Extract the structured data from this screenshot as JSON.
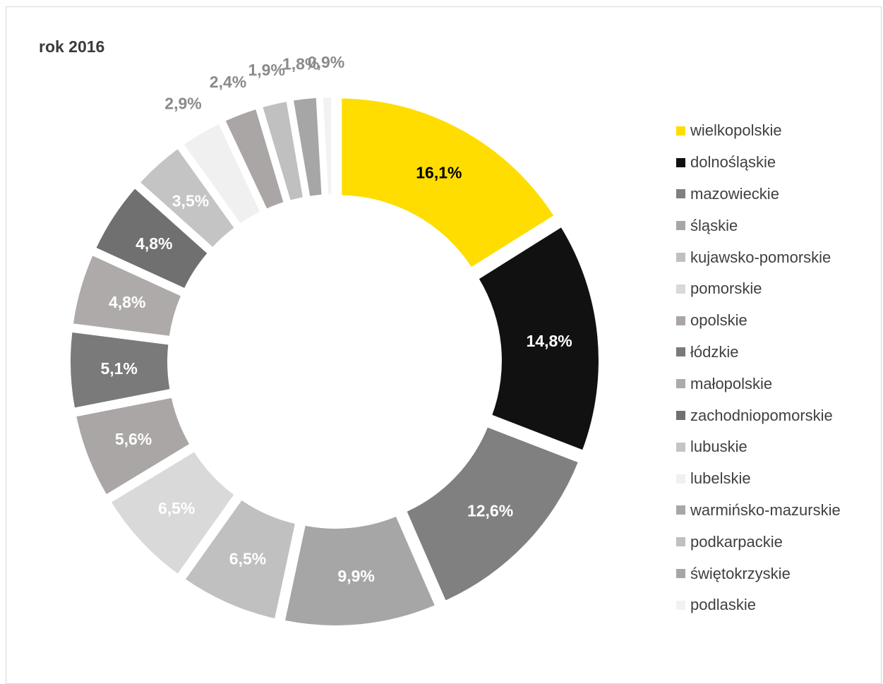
{
  "chart_data": {
    "type": "pie",
    "variant": "donut",
    "title": "rok 2016",
    "legend_position": "right",
    "slices": [
      {
        "name": "wielkopolskie",
        "value": 16.1,
        "label": "16,1%",
        "color": "#FFDD00",
        "label_color": "#000000"
      },
      {
        "name": "dolnośląskie",
        "value": 14.8,
        "label": "14,8%",
        "color": "#111111",
        "label_color": "#ffffff"
      },
      {
        "name": "mazowieckie",
        "value": 12.6,
        "label": "12,6%",
        "color": "#808080",
        "label_color": "#ffffff"
      },
      {
        "name": "śląskie",
        "value": 9.9,
        "label": "9,9%",
        "color": "#a6a6a6",
        "label_color": "#ffffff"
      },
      {
        "name": "kujawsko-pomorskie",
        "value": 6.5,
        "label": "6,5%",
        "color": "#c0c0c0",
        "label_color": "#ffffff"
      },
      {
        "name": "pomorskie",
        "value": 6.5,
        "label": "6,5%",
        "color": "#d9d9d9",
        "label_color": "#ffffff"
      },
      {
        "name": "opolskie",
        "value": 5.6,
        "label": "5,6%",
        "color": "#aba6a6",
        "label_color": "#ffffff"
      },
      {
        "name": "łódzkie",
        "value": 5.1,
        "label": "5,1%",
        "color": "#7a7a7a",
        "label_color": "#ffffff"
      },
      {
        "name": "małopolskie",
        "value": 4.8,
        "label": "4,8%",
        "color": "#aeaaaa",
        "label_color": "#ffffff"
      },
      {
        "name": "zachodniopomorskie",
        "value": 4.8,
        "label": "4,8%",
        "color": "#707070",
        "label_color": "#ffffff"
      },
      {
        "name": "lubuskie",
        "value": 3.5,
        "label": "3,5%",
        "color": "#c4c4c4",
        "label_color": "#ffffff"
      },
      {
        "name": "lubelskie",
        "value": 2.9,
        "label": "2,9%",
        "color": "#f0f0f0",
        "label_color": "#8a8a8a"
      },
      {
        "name": "warmińsko-mazurskie",
        "value": 2.4,
        "label": "2,4%",
        "color": "#aba6a6",
        "label_color": "#8a8a8a"
      },
      {
        "name": "podkarpackie",
        "value": 1.9,
        "label": "1,9%",
        "color": "#c0c0c0",
        "label_color": "#8a8a8a"
      },
      {
        "name": "świętokrzyskie",
        "value": 1.8,
        "label": "1,8%",
        "color": "#a6a6a6",
        "label_color": "#8a8a8a"
      },
      {
        "name": "podlaskie",
        "value": 0.9,
        "label": "0,9%",
        "color": "#f2f2f2",
        "label_color": "#8a8a8a"
      }
    ]
  }
}
